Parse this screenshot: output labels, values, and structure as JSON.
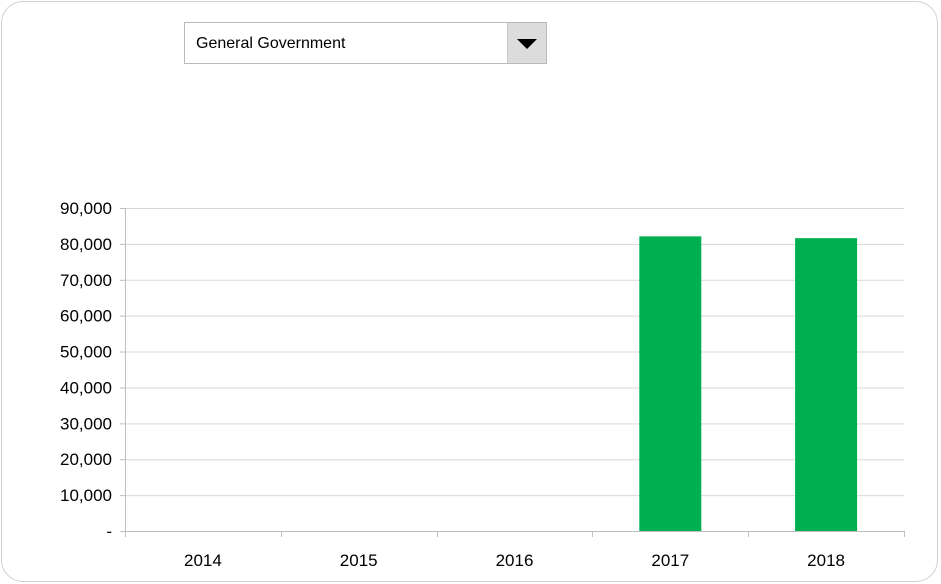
{
  "dropdown": {
    "selected": "General Government",
    "arrow_icon": "triangle-down-icon"
  },
  "chart_data": {
    "type": "bar",
    "categories": [
      "2014",
      "2015",
      "2016",
      "2017",
      "2018"
    ],
    "values": [
      0,
      0,
      0,
      82100,
      81600
    ],
    "ylim": [
      0,
      90000
    ],
    "yticks": [
      0,
      10000,
      20000,
      30000,
      40000,
      50000,
      60000,
      70000,
      80000,
      90000
    ],
    "ytick_labels": [
      "-",
      "10,000",
      "20,000",
      "30,000",
      "40,000",
      "50,000",
      "60,000",
      "70,000",
      "80,000",
      "90,000"
    ],
    "grid": true,
    "bar_color": "#00b050",
    "title": "",
    "xlabel": "",
    "ylabel": ""
  }
}
